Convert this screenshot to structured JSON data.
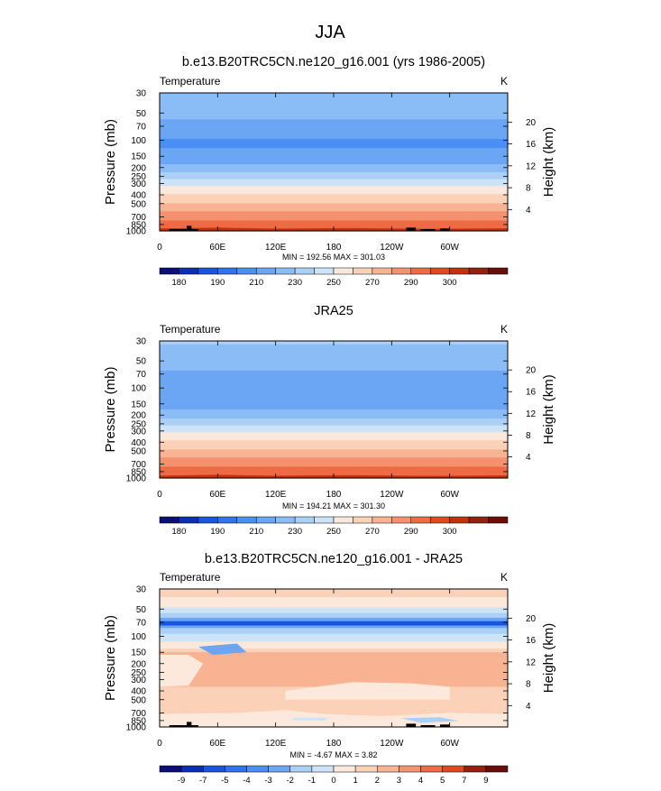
{
  "figure": {
    "title": "JJA",
    "left_label": "Temperature",
    "right_label": "K",
    "x_ticks": [
      "0",
      "60E",
      "120E",
      "180",
      "120W",
      "60W"
    ],
    "x_tick_values": [
      0,
      60,
      120,
      180,
      240,
      300
    ],
    "y_ticks": [
      "30",
      "50",
      "70",
      "100",
      "150",
      "200",
      "250",
      "300",
      "400",
      "500",
      "700",
      "850",
      "1000"
    ],
    "y_tick_values": [
      30,
      50,
      70,
      100,
      150,
      200,
      250,
      300,
      400,
      500,
      700,
      850,
      1000
    ],
    "y_label": "Pressure (mb)",
    "y2_label": "Height (km)",
    "y2_ticks": [
      "4",
      "8",
      "12",
      "16",
      "20"
    ],
    "y2_tick_values": [
      4,
      8,
      12,
      16,
      20
    ]
  },
  "chart_data": [
    {
      "type": "heatmap",
      "title": "b.e13.B20TRC5CN.ne120_g16.001 (yrs 1986-2005)",
      "variable": "Temperature",
      "units": "K",
      "xlim": [
        0,
        360
      ],
      "ylim": [
        1000,
        30
      ],
      "profile_p": [
        30,
        50,
        70,
        100,
        150,
        200,
        250,
        300,
        400,
        500,
        700,
        850,
        1000
      ],
      "profile_v": [
        218,
        213,
        207,
        199,
        201,
        214,
        225,
        236,
        251,
        261,
        276,
        284,
        292
      ],
      "min_max_text": "MIN = 192.56  MAX = 301.03",
      "colorbar": {
        "ticks": [
          "180",
          "190",
          "210",
          "230",
          "250",
          "270",
          "290",
          "300"
        ],
        "tick_index": [
          1,
          3,
          5,
          7,
          9,
          11,
          13,
          15
        ],
        "colors": [
          "#0a0f7a",
          "#0d2fb4",
          "#1a55e0",
          "#2f73ee",
          "#4a8ff3",
          "#6aa6f3",
          "#8bbcf6",
          "#abd0f6",
          "#cde3f7",
          "#fbe8dc",
          "#fbd1b8",
          "#f8b393",
          "#f49270",
          "#ee6b44",
          "#e04a1f",
          "#c1320d",
          "#952010",
          "#6b0d0b"
        ]
      }
    },
    {
      "type": "heatmap",
      "title": "JRA25",
      "variable": "Temperature",
      "units": "K",
      "xlim": [
        0,
        360
      ],
      "ylim": [
        1000,
        30
      ],
      "profile_p": [
        30,
        50,
        70,
        100,
        150,
        200,
        250,
        300,
        400,
        500,
        700,
        850,
        1000
      ],
      "profile_v": [
        221,
        215,
        208,
        200,
        203,
        216,
        227,
        238,
        252,
        262,
        277,
        285,
        293
      ],
      "min_max_text": "MIN = 194.21  MAX = 301.30",
      "colorbar": {
        "ticks": [
          "180",
          "190",
          "210",
          "230",
          "250",
          "270",
          "290",
          "300"
        ],
        "tick_index": [
          1,
          3,
          5,
          7,
          9,
          11,
          13,
          15
        ],
        "colors": [
          "#0a0f7a",
          "#0d2fb4",
          "#1a55e0",
          "#2f73ee",
          "#4a8ff3",
          "#6aa6f3",
          "#8bbcf6",
          "#abd0f6",
          "#cde3f7",
          "#fbe8dc",
          "#fbd1b8",
          "#f8b393",
          "#f49270",
          "#ee6b44",
          "#e04a1f",
          "#c1320d",
          "#952010",
          "#6b0d0b"
        ]
      }
    },
    {
      "type": "heatmap",
      "title": "b.e13.B20TRC5CN.ne120_g16.001 - JRA25",
      "variable": "Temperature",
      "units": "K",
      "xlim": [
        0,
        360
      ],
      "ylim": [
        1000,
        30
      ],
      "profile_p": [
        30,
        45,
        60,
        70,
        80,
        100,
        130,
        150,
        200,
        300,
        500,
        700,
        850,
        1000
      ],
      "profile_v": [
        0.5,
        -0.5,
        -2.5,
        -4.3,
        -3.0,
        -1.5,
        -0.5,
        1.2,
        1.4,
        1.3,
        0.5,
        0.5,
        -0.2,
        0.5
      ],
      "min_max_text": "MIN = -4.67  MAX =  3.82",
      "colorbar": {
        "ticks": [
          "-9",
          "-7",
          "-5",
          "-4",
          "-3",
          "-2",
          "-1",
          "0",
          "1",
          "2",
          "3",
          "4",
          "5",
          "7",
          "9"
        ],
        "tick_index": [
          1,
          2,
          3,
          4,
          5,
          6,
          7,
          8,
          9,
          10,
          11,
          12,
          13,
          14,
          15
        ],
        "colors": [
          "#0a0f7a",
          "#0d2fb4",
          "#1a55e0",
          "#2f73ee",
          "#4a8ff3",
          "#6aa6f3",
          "#abd0f6",
          "#cde3f7",
          "#fde9db",
          "#fbd1b8",
          "#f8b393",
          "#f49270",
          "#ee6b44",
          "#e04a1f",
          "#952010",
          "#6b0d0b"
        ]
      }
    }
  ]
}
